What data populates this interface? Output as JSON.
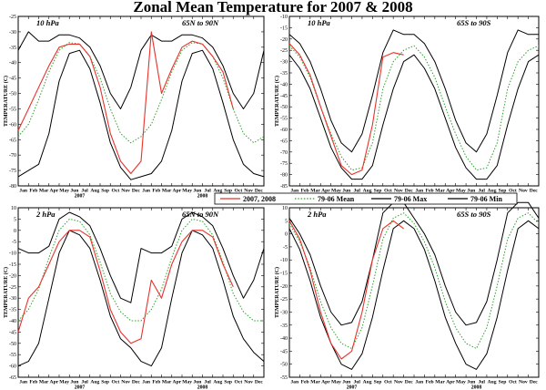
{
  "title": "Zonal Mean Temperature for 2007 & 2008",
  "colors": {
    "obs": "#e8322c",
    "mean": "#2ca02c",
    "max": "#000000",
    "min": "#000000"
  },
  "legend": [
    {
      "key": "obs",
      "label": "2007, 2008",
      "color": "#e8322c",
      "dash": "solid"
    },
    {
      "key": "mean",
      "label": "79-06 Mean",
      "color": "#2ca02c",
      "dash": "dotted"
    },
    {
      "key": "max",
      "label": "79-06 Max",
      "color": "#000000",
      "dash": "solid"
    },
    {
      "key": "min",
      "label": "79-06 Min",
      "color": "#000000",
      "dash": "solid"
    }
  ],
  "chart_data": [
    {
      "type": "line",
      "level": "10 hPa",
      "region": "65N to 90N",
      "ylabel": "TEMPERATURE (C)",
      "ylim": [
        -80,
        -25
      ],
      "yticks": [
        -80,
        -75,
        -70,
        -65,
        -60,
        -55,
        -50,
        -45,
        -40,
        -35,
        -30,
        -25
      ],
      "months": [
        "Jan",
        "Feb",
        "Mar",
        "Apr",
        "May",
        "Jun",
        "Jul",
        "Aug",
        "Sep",
        "Oct",
        "Nov",
        "Dec",
        "Jan",
        "Feb",
        "Mar",
        "Apr",
        "May",
        "Jun",
        "Jul",
        "Aug",
        "Sep",
        "Oct",
        "Nov",
        "Dec"
      ],
      "years": [
        "2007",
        "2008"
      ],
      "x_months": [
        0,
        1,
        2,
        3,
        4,
        5,
        6,
        7,
        8,
        9,
        10,
        11,
        12,
        13,
        14,
        15,
        16,
        17,
        18,
        19,
        20,
        21,
        22,
        23,
        24
      ],
      "series": [
        {
          "key": "mean",
          "values": [
            -64,
            -60,
            -52,
            -43,
            -36,
            -33.5,
            -34,
            -38,
            -45,
            -55,
            -63,
            -66,
            -64,
            -60,
            -52,
            -43,
            -36,
            -33.5,
            -34,
            -38,
            -45,
            -55,
            -63,
            -66,
            -64
          ]
        },
        {
          "key": "max",
          "values": [
            -36,
            -30,
            -33,
            -33,
            -31,
            -31,
            -32,
            -35,
            -41,
            -50,
            -55,
            -48,
            -36,
            -31,
            -33,
            -33,
            -31,
            -31,
            -32,
            -35,
            -41,
            -50,
            -55,
            -50,
            -36
          ]
        },
        {
          "key": "min",
          "values": [
            -77,
            -75,
            -73,
            -63,
            -46,
            -37,
            -36,
            -42,
            -53,
            -66,
            -74,
            -78,
            -77,
            -76,
            -72,
            -62,
            -46,
            -37,
            -36,
            -42,
            -53,
            -65,
            -73,
            -76,
            -77
          ]
        },
        {
          "key": "obs",
          "values": [
            -62,
            -55,
            -48,
            -41,
            -35,
            -34,
            -34,
            -38,
            -48,
            -63,
            -72,
            -76,
            -72,
            -30,
            -50,
            -42,
            -35,
            -33,
            -34,
            -38,
            -43,
            -55,
            null,
            null,
            null
          ]
        }
      ]
    },
    {
      "type": "line",
      "level": "10 hPa",
      "region": "65S to 90S",
      "ylabel": "TEMPERATURE (C)",
      "ylim": [
        -85,
        -10
      ],
      "yticks": [
        -85,
        -80,
        -75,
        -70,
        -65,
        -60,
        -55,
        -50,
        -45,
        -40,
        -35,
        -30,
        -25,
        -20,
        -15,
        -10
      ],
      "months": [
        "Jan",
        "Feb",
        "Mar",
        "Apr",
        "May",
        "Jun",
        "Jul",
        "Aug",
        "Sep",
        "Oct",
        "Nov",
        "Dec",
        "Jan",
        "Feb",
        "Mar",
        "Apr",
        "May",
        "Jun",
        "Jul",
        "Aug",
        "Sep",
        "Oct",
        "Nov",
        "Dec"
      ],
      "years": [
        "2007",
        "2008"
      ],
      "x_months": [
        0,
        1,
        2,
        3,
        4,
        5,
        6,
        7,
        8,
        9,
        10,
        11,
        12,
        13,
        14,
        15,
        16,
        17,
        18,
        19,
        20,
        21,
        22,
        23,
        24
      ],
      "series": [
        {
          "key": "mean",
          "values": [
            -23,
            -28,
            -37,
            -50,
            -62,
            -72,
            -78,
            -77,
            -66,
            -42,
            -30,
            -25,
            -23,
            -28,
            -37,
            -50,
            -62,
            -72,
            -78,
            -77,
            -66,
            -42,
            -30,
            -25,
            -23
          ]
        },
        {
          "key": "max",
          "values": [
            -18,
            -22,
            -30,
            -42,
            -56,
            -66,
            -70,
            -62,
            -45,
            -26,
            -16,
            -18,
            -18,
            -22,
            -30,
            -42,
            -56,
            -66,
            -70,
            -62,
            -45,
            -26,
            -16,
            -18,
            -18
          ]
        },
        {
          "key": "min",
          "values": [
            -27,
            -33,
            -42,
            -55,
            -68,
            -77,
            -82,
            -82,
            -76,
            -58,
            -42,
            -30,
            -27,
            -33,
            -42,
            -55,
            -68,
            -77,
            -82,
            -82,
            -76,
            -58,
            -42,
            -30,
            -27
          ]
        },
        {
          "key": "obs",
          "values": [
            -22,
            -27,
            -36,
            -50,
            -63,
            -76,
            -80,
            -78,
            -58,
            -28,
            -26,
            -27,
            null,
            null,
            null,
            null,
            null,
            null,
            null,
            null,
            null,
            null,
            null,
            null,
            null
          ]
        }
      ]
    },
    {
      "type": "line",
      "level": "2 hPa",
      "region": "65N to 90N",
      "ylabel": "TEMPERATURE (C)",
      "ylim": [
        -65,
        10
      ],
      "yticks": [
        -65,
        -60,
        -55,
        -50,
        -45,
        -40,
        -35,
        -30,
        -25,
        -20,
        -15,
        -10,
        -5,
        0,
        5,
        10
      ],
      "months": [
        "Jan",
        "Feb",
        "Mar",
        "Apr",
        "May",
        "Jun",
        "Jul",
        "Aug",
        "Sep",
        "Oct",
        "Nov",
        "Dec",
        "Jan",
        "Feb",
        "Mar",
        "Apr",
        "May",
        "Jun",
        "Jul",
        "Aug",
        "Sep",
        "Oct",
        "Nov",
        "Dec"
      ],
      "years": [
        "2007",
        "2008"
      ],
      "x_months": [
        0,
        1,
        2,
        3,
        4,
        5,
        6,
        7,
        8,
        9,
        10,
        11,
        12,
        13,
        14,
        15,
        16,
        17,
        18,
        19,
        20,
        21,
        22,
        23,
        24
      ],
      "series": [
        {
          "key": "mean",
          "values": [
            -40,
            -35,
            -26,
            -12,
            0,
            5,
            4,
            -2,
            -14,
            -28,
            -36,
            -40,
            -40,
            -35,
            -26,
            -12,
            0,
            5,
            4,
            -2,
            -14,
            -28,
            -36,
            -40,
            -40
          ]
        },
        {
          "key": "max",
          "values": [
            -8,
            -10,
            -10,
            -7,
            5,
            8,
            6,
            2,
            -8,
            -20,
            -30,
            -32,
            -8,
            -10,
            -10,
            -7,
            5,
            8,
            6,
            2,
            -8,
            -20,
            -30,
            -22,
            -8
          ]
        },
        {
          "key": "min",
          "values": [
            -60,
            -58,
            -50,
            -30,
            -10,
            0,
            -2,
            -8,
            -22,
            -38,
            -48,
            -52,
            -58,
            -60,
            -52,
            -30,
            -10,
            0,
            -2,
            -8,
            -22,
            -38,
            -48,
            -54,
            -58
          ]
        },
        {
          "key": "obs",
          "values": [
            -45,
            -30,
            -25,
            -15,
            -5,
            0,
            0,
            -3,
            -18,
            -35,
            -45,
            -50,
            -48,
            -22,
            -30,
            -15,
            -5,
            0,
            0,
            -3,
            -15,
            -25,
            null,
            null,
            null
          ]
        }
      ]
    },
    {
      "type": "line",
      "level": "2 hPa",
      "region": "65S to 90S",
      "ylabel": "TEMPERATURE (C)",
      "ylim": [
        -55,
        10
      ],
      "yticks": [
        -55,
        -50,
        -45,
        -40,
        -35,
        -30,
        -25,
        -20,
        -15,
        -10,
        -5,
        0,
        5,
        10
      ],
      "months": [
        "Jan",
        "Feb",
        "Mar",
        "Apr",
        "May",
        "Jun",
        "Jul",
        "Aug",
        "Sep",
        "Oct",
        "Nov",
        "Dec",
        "Jan",
        "Feb",
        "Mar",
        "Apr",
        "May",
        "Jun",
        "Jul",
        "Aug",
        "Sep",
        "Oct",
        "Nov",
        "Dec"
      ],
      "years": [
        "2007",
        "2008"
      ],
      "x_months": [
        0,
        1,
        2,
        3,
        4,
        5,
        6,
        7,
        8,
        9,
        10,
        11,
        12,
        13,
        14,
        15,
        16,
        17,
        18,
        19,
        20,
        21,
        22,
        23,
        24
      ],
      "series": [
        {
          "key": "mean",
          "values": [
            4,
            -3,
            -13,
            -26,
            -36,
            -42,
            -44,
            -36,
            -20,
            -2,
            6,
            8,
            4,
            -3,
            -13,
            -26,
            -36,
            -42,
            -44,
            -36,
            -20,
            -2,
            6,
            8,
            4
          ]
        },
        {
          "key": "max",
          "values": [
            6,
            0,
            -8,
            -20,
            -30,
            -35,
            -34,
            -26,
            -10,
            8,
            12,
            12,
            6,
            0,
            -8,
            -20,
            -30,
            -35,
            -34,
            -26,
            -10,
            8,
            12,
            12,
            6
          ]
        },
        {
          "key": "min",
          "values": [
            2,
            -6,
            -18,
            -32,
            -42,
            -50,
            -52,
            -46,
            -32,
            -14,
            2,
            5,
            2,
            -6,
            -18,
            -32,
            -42,
            -50,
            -52,
            -46,
            -32,
            -14,
            2,
            5,
            2
          ]
        },
        {
          "key": "obs",
          "values": [
            5,
            -2,
            -14,
            -30,
            -42,
            -48,
            -45,
            -30,
            -10,
            2,
            5,
            2,
            null,
            null,
            null,
            null,
            null,
            null,
            null,
            null,
            null,
            null,
            null,
            null,
            null
          ]
        }
      ]
    }
  ]
}
